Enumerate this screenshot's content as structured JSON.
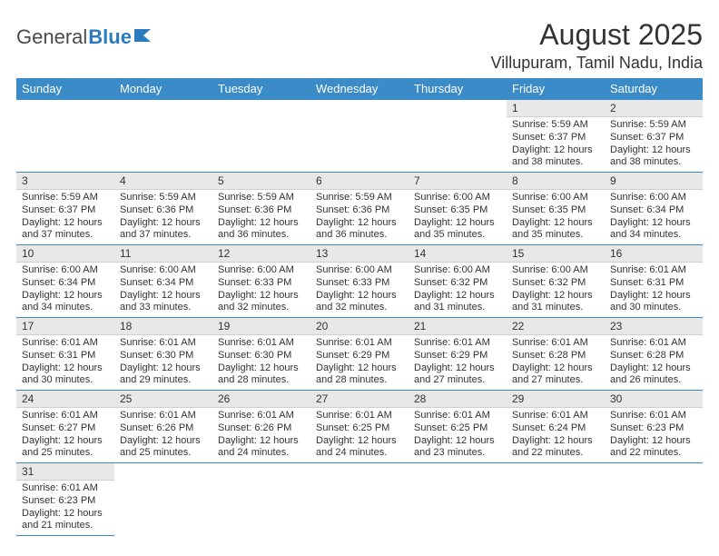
{
  "logo": {
    "text1": "General",
    "text2": "Blue"
  },
  "title": "August 2025",
  "location": "Villupuram, Tamil Nadu, India",
  "colors": {
    "header_bg": "#3b8bc9",
    "header_text": "#ffffff",
    "daynum_bg": "#e8e8e8",
    "border": "#3b8bc9",
    "text": "#333333",
    "logo_gray": "#4a4a4a",
    "logo_blue": "#2b7bbf"
  },
  "daysOfWeek": [
    "Sunday",
    "Monday",
    "Tuesday",
    "Wednesday",
    "Thursday",
    "Friday",
    "Saturday"
  ],
  "weeks": [
    [
      null,
      null,
      null,
      null,
      null,
      {
        "n": "1",
        "sr": "Sunrise: 5:59 AM",
        "ss": "Sunset: 6:37 PM",
        "dl": "Daylight: 12 hours and 38 minutes."
      },
      {
        "n": "2",
        "sr": "Sunrise: 5:59 AM",
        "ss": "Sunset: 6:37 PM",
        "dl": "Daylight: 12 hours and 38 minutes."
      }
    ],
    [
      {
        "n": "3",
        "sr": "Sunrise: 5:59 AM",
        "ss": "Sunset: 6:37 PM",
        "dl": "Daylight: 12 hours and 37 minutes."
      },
      {
        "n": "4",
        "sr": "Sunrise: 5:59 AM",
        "ss": "Sunset: 6:36 PM",
        "dl": "Daylight: 12 hours and 37 minutes."
      },
      {
        "n": "5",
        "sr": "Sunrise: 5:59 AM",
        "ss": "Sunset: 6:36 PM",
        "dl": "Daylight: 12 hours and 36 minutes."
      },
      {
        "n": "6",
        "sr": "Sunrise: 5:59 AM",
        "ss": "Sunset: 6:36 PM",
        "dl": "Daylight: 12 hours and 36 minutes."
      },
      {
        "n": "7",
        "sr": "Sunrise: 6:00 AM",
        "ss": "Sunset: 6:35 PM",
        "dl": "Daylight: 12 hours and 35 minutes."
      },
      {
        "n": "8",
        "sr": "Sunrise: 6:00 AM",
        "ss": "Sunset: 6:35 PM",
        "dl": "Daylight: 12 hours and 35 minutes."
      },
      {
        "n": "9",
        "sr": "Sunrise: 6:00 AM",
        "ss": "Sunset: 6:34 PM",
        "dl": "Daylight: 12 hours and 34 minutes."
      }
    ],
    [
      {
        "n": "10",
        "sr": "Sunrise: 6:00 AM",
        "ss": "Sunset: 6:34 PM",
        "dl": "Daylight: 12 hours and 34 minutes."
      },
      {
        "n": "11",
        "sr": "Sunrise: 6:00 AM",
        "ss": "Sunset: 6:34 PM",
        "dl": "Daylight: 12 hours and 33 minutes."
      },
      {
        "n": "12",
        "sr": "Sunrise: 6:00 AM",
        "ss": "Sunset: 6:33 PM",
        "dl": "Daylight: 12 hours and 32 minutes."
      },
      {
        "n": "13",
        "sr": "Sunrise: 6:00 AM",
        "ss": "Sunset: 6:33 PM",
        "dl": "Daylight: 12 hours and 32 minutes."
      },
      {
        "n": "14",
        "sr": "Sunrise: 6:00 AM",
        "ss": "Sunset: 6:32 PM",
        "dl": "Daylight: 12 hours and 31 minutes."
      },
      {
        "n": "15",
        "sr": "Sunrise: 6:00 AM",
        "ss": "Sunset: 6:32 PM",
        "dl": "Daylight: 12 hours and 31 minutes."
      },
      {
        "n": "16",
        "sr": "Sunrise: 6:01 AM",
        "ss": "Sunset: 6:31 PM",
        "dl": "Daylight: 12 hours and 30 minutes."
      }
    ],
    [
      {
        "n": "17",
        "sr": "Sunrise: 6:01 AM",
        "ss": "Sunset: 6:31 PM",
        "dl": "Daylight: 12 hours and 30 minutes."
      },
      {
        "n": "18",
        "sr": "Sunrise: 6:01 AM",
        "ss": "Sunset: 6:30 PM",
        "dl": "Daylight: 12 hours and 29 minutes."
      },
      {
        "n": "19",
        "sr": "Sunrise: 6:01 AM",
        "ss": "Sunset: 6:30 PM",
        "dl": "Daylight: 12 hours and 28 minutes."
      },
      {
        "n": "20",
        "sr": "Sunrise: 6:01 AM",
        "ss": "Sunset: 6:29 PM",
        "dl": "Daylight: 12 hours and 28 minutes."
      },
      {
        "n": "21",
        "sr": "Sunrise: 6:01 AM",
        "ss": "Sunset: 6:29 PM",
        "dl": "Daylight: 12 hours and 27 minutes."
      },
      {
        "n": "22",
        "sr": "Sunrise: 6:01 AM",
        "ss": "Sunset: 6:28 PM",
        "dl": "Daylight: 12 hours and 27 minutes."
      },
      {
        "n": "23",
        "sr": "Sunrise: 6:01 AM",
        "ss": "Sunset: 6:28 PM",
        "dl": "Daylight: 12 hours and 26 minutes."
      }
    ],
    [
      {
        "n": "24",
        "sr": "Sunrise: 6:01 AM",
        "ss": "Sunset: 6:27 PM",
        "dl": "Daylight: 12 hours and 25 minutes."
      },
      {
        "n": "25",
        "sr": "Sunrise: 6:01 AM",
        "ss": "Sunset: 6:26 PM",
        "dl": "Daylight: 12 hours and 25 minutes."
      },
      {
        "n": "26",
        "sr": "Sunrise: 6:01 AM",
        "ss": "Sunset: 6:26 PM",
        "dl": "Daylight: 12 hours and 24 minutes."
      },
      {
        "n": "27",
        "sr": "Sunrise: 6:01 AM",
        "ss": "Sunset: 6:25 PM",
        "dl": "Daylight: 12 hours and 24 minutes."
      },
      {
        "n": "28",
        "sr": "Sunrise: 6:01 AM",
        "ss": "Sunset: 6:25 PM",
        "dl": "Daylight: 12 hours and 23 minutes."
      },
      {
        "n": "29",
        "sr": "Sunrise: 6:01 AM",
        "ss": "Sunset: 6:24 PM",
        "dl": "Daylight: 12 hours and 22 minutes."
      },
      {
        "n": "30",
        "sr": "Sunrise: 6:01 AM",
        "ss": "Sunset: 6:23 PM",
        "dl": "Daylight: 12 hours and 22 minutes."
      }
    ],
    [
      {
        "n": "31",
        "sr": "Sunrise: 6:01 AM",
        "ss": "Sunset: 6:23 PM",
        "dl": "Daylight: 12 hours and 21 minutes."
      },
      null,
      null,
      null,
      null,
      null,
      null
    ]
  ]
}
